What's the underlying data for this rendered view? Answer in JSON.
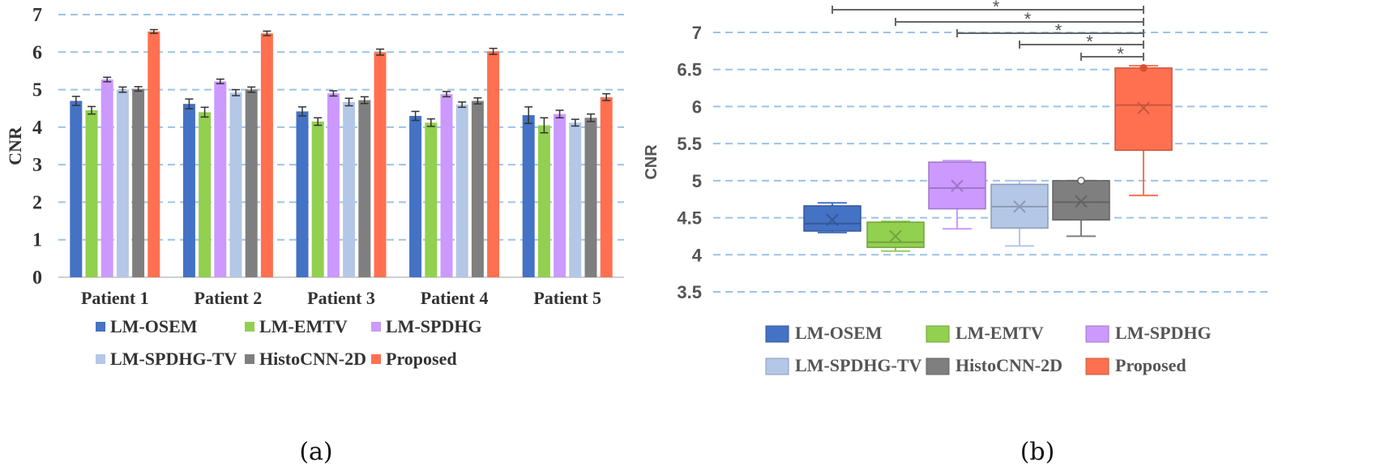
{
  "colors": {
    "LM-OSEM": "#4472C4",
    "LM-EMTV": "#92D050",
    "LM-SPDHG": "#CC99FF",
    "LM-SPDHG-TV": "#B4C7E7",
    "HistoCNN-2D": "#7F7F7F",
    "Proposed": "#FF7050",
    "gridline": "#9DC3E6"
  },
  "panel_labels": {
    "a": "(a)",
    "b": "(b)"
  },
  "chart_data": [
    {
      "type": "bar",
      "ylabel": "CNR",
      "ylim": [
        0,
        7
      ],
      "yticks": [
        "0",
        "1",
        "2",
        "3",
        "4",
        "5",
        "6",
        "7"
      ],
      "grid": "dashed horizontal",
      "legend_position": "bottom",
      "categories": [
        "Patient 1",
        "Patient 2",
        "Patient 3",
        "Patient 4",
        "Patient 5"
      ],
      "series": [
        {
          "name": "LM-OSEM",
          "values": [
            4.7,
            4.62,
            4.42,
            4.3,
            4.32
          ],
          "errors": [
            0.12,
            0.13,
            0.12,
            0.12,
            0.22
          ]
        },
        {
          "name": "LM-EMTV",
          "values": [
            4.45,
            4.4,
            4.15,
            4.12,
            4.05
          ],
          "errors": [
            0.1,
            0.13,
            0.1,
            0.1,
            0.2
          ]
        },
        {
          "name": "LM-SPDHG",
          "values": [
            5.27,
            5.22,
            4.9,
            4.88,
            4.35
          ],
          "errors": [
            0.06,
            0.06,
            0.07,
            0.07,
            0.1
          ]
        },
        {
          "name": "LM-SPDHG-TV",
          "values": [
            5.0,
            4.92,
            4.67,
            4.6,
            4.12
          ],
          "errors": [
            0.07,
            0.08,
            0.1,
            0.07,
            0.09
          ]
        },
        {
          "name": "HistoCNN-2D",
          "values": [
            5.02,
            5.0,
            4.72,
            4.7,
            4.25
          ],
          "errors": [
            0.06,
            0.07,
            0.09,
            0.08,
            0.1
          ]
        },
        {
          "name": "Proposed",
          "values": [
            6.55,
            6.5,
            6.0,
            6.02,
            4.8
          ],
          "errors": [
            0.05,
            0.06,
            0.08,
            0.08,
            0.09
          ]
        }
      ],
      "legend": [
        "LM-OSEM",
        "LM-EMTV",
        "LM-SPDHG",
        "LM-SPDHG-TV",
        "HistoCNN-2D",
        "Proposed"
      ]
    },
    {
      "type": "box",
      "ylabel": "CNR",
      "ylim": [
        3.5,
        7
      ],
      "yticks": [
        "3.5",
        "4",
        "4.5",
        "5",
        "5.5",
        "6",
        "6.5",
        "7"
      ],
      "grid": "dashed horizontal",
      "legend_position": "bottom",
      "series": [
        {
          "name": "LM-OSEM",
          "min": 4.3,
          "q1": 4.32,
          "median": 4.42,
          "q3": 4.66,
          "max": 4.7,
          "mean": 4.47,
          "outliers": []
        },
        {
          "name": "LM-EMTV",
          "min": 4.05,
          "q1": 4.1,
          "median": 4.17,
          "q3": 4.44,
          "max": 4.45,
          "mean": 4.25,
          "outliers": []
        },
        {
          "name": "LM-SPDHG",
          "min": 4.35,
          "q1": 4.62,
          "median": 4.9,
          "q3": 5.25,
          "max": 5.27,
          "mean": 4.93,
          "outliers": []
        },
        {
          "name": "LM-SPDHG-TV",
          "min": 4.12,
          "q1": 4.36,
          "median": 4.65,
          "q3": 4.95,
          "max": 5.0,
          "mean": 4.65,
          "outliers": []
        },
        {
          "name": "HistoCNN-2D",
          "min": 4.25,
          "q1": 4.47,
          "median": 4.71,
          "q3": 5.0,
          "max": 5.0,
          "mean": 4.72,
          "outliers": [
            5.0
          ]
        },
        {
          "name": "Proposed",
          "min": 4.8,
          "q1": 5.41,
          "median": 6.02,
          "q3": 6.52,
          "max": 6.55,
          "mean": 5.98,
          "outliers": [
            6.52
          ]
        }
      ],
      "significance": [
        {
          "from": "LM-OSEM",
          "to": "Proposed",
          "label": "*"
        },
        {
          "from": "LM-EMTV",
          "to": "Proposed",
          "label": "*"
        },
        {
          "from": "LM-SPDHG",
          "to": "Proposed",
          "label": "*"
        },
        {
          "from": "LM-SPDHG-TV",
          "to": "Proposed",
          "label": "*"
        },
        {
          "from": "HistoCNN-2D",
          "to": "Proposed",
          "label": "*"
        }
      ],
      "legend": [
        "LM-OSEM",
        "LM-EMTV",
        "LM-SPDHG",
        "LM-SPDHG-TV",
        "HistoCNN-2D",
        "Proposed"
      ]
    }
  ]
}
